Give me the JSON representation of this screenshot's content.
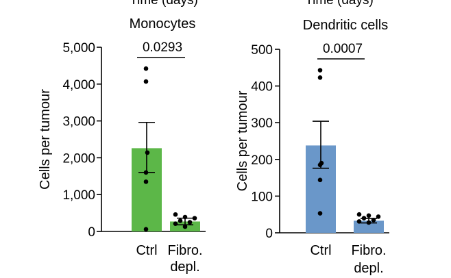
{
  "figure": {
    "cut_top_labels": [
      "Time (days)",
      "Time (days)"
    ]
  },
  "chart_data": [
    {
      "type": "bar",
      "title": "Monocytes",
      "ylabel": "Cells per tumour",
      "xlabel": "",
      "categories": [
        "Ctrl",
        "Fibro.\ndepl."
      ],
      "values": [
        2260,
        270
      ],
      "error_sem": [
        [
          1600,
          2960
        ],
        [
          180,
          360
        ]
      ],
      "points": [
        [
          4420,
          4070,
          2140,
          1600,
          1350,
          60
        ],
        [
          460,
          390,
          360,
          290,
          250,
          210,
          130
        ]
      ],
      "colors": [
        "#5cb748",
        "#5cb748"
      ],
      "ylim": [
        0,
        5000
      ],
      "yticks": [
        0,
        1000,
        2000,
        3000,
        4000,
        5000
      ],
      "ytick_labels": [
        "0",
        "1,000",
        "2,000",
        "3,000",
        "4,000",
        "5,000"
      ],
      "annotation": "0.0293",
      "grid": false,
      "legend": "none"
    },
    {
      "type": "bar",
      "title": "Dendritic cells",
      "ylabel": "Cells per tumour",
      "xlabel": "",
      "categories": [
        "Ctrl",
        "Fibro.\ndepl."
      ],
      "values": [
        238,
        33
      ],
      "error_sem": [
        [
          176,
          304
        ],
        [
          27,
          39
        ]
      ],
      "points": [
        [
          443,
          423,
          190,
          185,
          144,
          53
        ],
        [
          50,
          47,
          44,
          40,
          35,
          31,
          28
        ]
      ],
      "colors": [
        "#6a97c9",
        "#6a97c9"
      ],
      "ylim": [
        0,
        500
      ],
      "yticks": [
        0,
        100,
        200,
        300,
        400,
        500
      ],
      "ytick_labels": [
        "0",
        "100",
        "200",
        "300",
        "400",
        "500"
      ],
      "annotation": "0.0007",
      "grid": false,
      "legend": "none"
    }
  ]
}
